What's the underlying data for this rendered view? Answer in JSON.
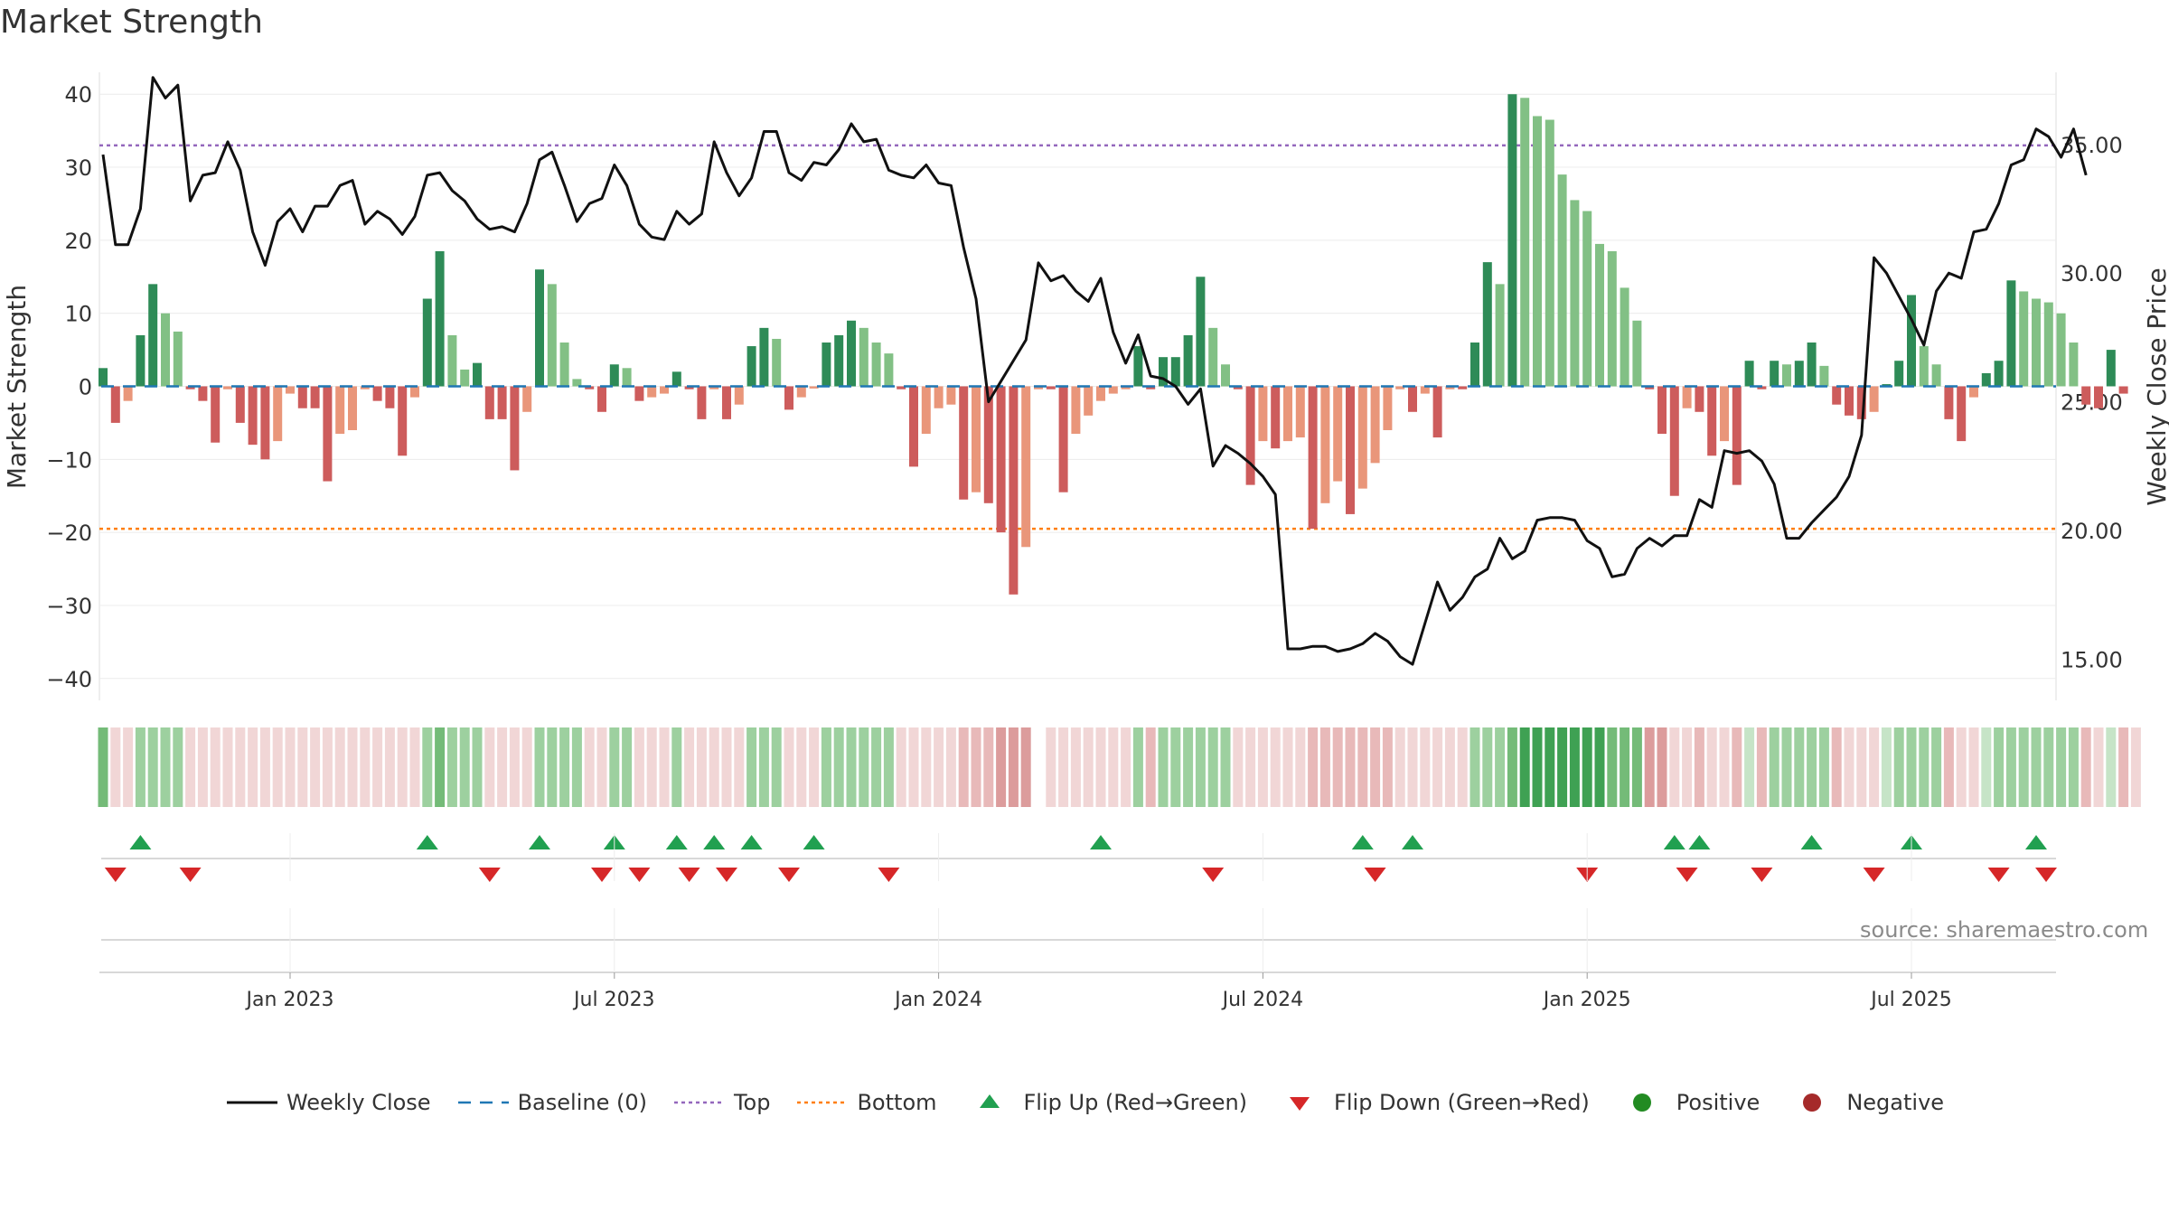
{
  "title": "Market Strength",
  "source": "source: sharemaestro.com",
  "chart_data": {
    "type": "bar",
    "left_axis_label": "Market Strength",
    "right_axis_label": "Weekly Close Price",
    "left_ylim": [
      -43,
      43
    ],
    "left_ticks": [
      40,
      30,
      20,
      10,
      0,
      -10,
      -20,
      -30,
      -40
    ],
    "left_tick_labels": [
      "40",
      "30",
      "20",
      "10",
      "0",
      "−10",
      "−20",
      "−30",
      "−40"
    ],
    "right_ylim": [
      13.4,
      37.8
    ],
    "right_ticks": [
      35,
      30,
      25,
      20,
      15
    ],
    "right_tick_labels": [
      "35.00",
      "30.00",
      "25.00",
      "20.00",
      "15.00"
    ],
    "top_line": 33,
    "bottom_line": -19.5,
    "x_tick_labels": [
      "Jan 2023",
      "Jul 2023",
      "Jan 2024",
      "Jul 2024",
      "Jan 2025",
      "Jul 2025"
    ],
    "x_tick_weeks": [
      15,
      41,
      67,
      93,
      119,
      145
    ],
    "strength": [
      2.5,
      -5,
      -2,
      7,
      14,
      10,
      7.5,
      -0.4,
      -2,
      -7.7,
      -0.4,
      -5,
      -8,
      -10,
      -7.5,
      -1,
      -3,
      -3,
      -13,
      -6.5,
      -6,
      -0.4,
      -2,
      -3,
      -9.5,
      -1.5,
      12,
      18.5,
      7,
      2.3,
      3.2,
      -4.5,
      -4.5,
      -11.5,
      -3.5,
      16,
      14,
      6,
      1,
      -0.4,
      -3.5,
      3,
      2.5,
      -2,
      -1.5,
      -1,
      2,
      -0.4,
      -4.5,
      -0.4,
      -4.5,
      -2.5,
      5.5,
      8,
      6.5,
      -3.2,
      -1.5,
      -0.3,
      6,
      7,
      9,
      8,
      6,
      4.5,
      -0.4,
      -11,
      -6.5,
      -3,
      -2.5,
      -15.5,
      -14.5,
      -16,
      -20,
      -28.5,
      -22,
      -0.4,
      -0.4,
      -14.5,
      -6.5,
      -4,
      -2,
      -1,
      -0.4,
      5.5,
      -0.4,
      4,
      4,
      7,
      15,
      8,
      3,
      -0.4,
      -13.5,
      -7.5,
      -8.5,
      -7.5,
      -7,
      -19.5,
      -16,
      -13,
      -17.5,
      -14,
      -10.5,
      -6,
      -0.4,
      -3.5,
      -1,
      -7,
      -0.4,
      -0.4,
      6,
      17,
      14,
      40,
      39.5,
      37,
      36.5,
      29,
      25.5,
      24,
      19.5,
      18.5,
      13.5,
      9,
      -0.4,
      -6.5,
      -15,
      -3,
      -3.5,
      -9.5,
      -7.5,
      -13.5,
      3.5,
      -0.4,
      3.5,
      3,
      3.5,
      6,
      2.8,
      -2.5,
      -4,
      -4.5,
      -3.5,
      0.3,
      3.5,
      12.5,
      5.5,
      3,
      -4.5,
      -7.5,
      -1.5,
      1.8,
      3.5,
      14.5,
      13,
      12,
      11.5,
      10,
      6,
      -2.5,
      -3,
      5,
      -1
    ],
    "weekly_close": [
      34.6,
      31.1,
      31.1,
      32.5,
      37.6,
      36.8,
      37.3,
      32.8,
      33.8,
      33.9,
      35.1,
      34.0,
      31.6,
      30.3,
      32.0,
      32.5,
      31.6,
      32.6,
      32.6,
      33.4,
      33.6,
      31.9,
      32.4,
      32.1,
      31.5,
      32.2,
      33.8,
      33.9,
      33.2,
      32.8,
      32.1,
      31.7,
      31.8,
      31.6,
      32.7,
      34.4,
      34.7,
      33.4,
      32.0,
      32.7,
      32.9,
      34.2,
      33.4,
      31.9,
      31.4,
      31.3,
      32.4,
      31.9,
      32.3,
      35.1,
      33.9,
      33.0,
      33.7,
      35.5,
      35.5,
      33.9,
      33.6,
      34.3,
      34.2,
      34.8,
      35.8,
      35.1,
      35.2,
      34.0,
      33.8,
      33.7,
      34.2,
      33.5,
      33.4,
      31.0,
      29.0,
      25.0,
      25.8,
      26.6,
      27.4,
      30.4,
      29.7,
      29.9,
      29.3,
      28.9,
      29.8,
      27.7,
      26.5,
      27.6,
      26.0,
      25.9,
      25.6,
      24.9,
      25.5,
      22.5,
      23.3,
      23.0,
      22.6,
      22.1,
      21.4,
      15.4,
      15.4,
      15.5,
      15.5,
      15.3,
      15.4,
      15.6,
      16.0,
      15.7,
      15.1,
      14.8,
      16.4,
      18.0,
      16.9,
      17.4,
      18.2,
      18.5,
      19.7,
      18.9,
      19.2,
      20.4,
      20.5,
      20.5,
      20.4,
      19.6,
      19.3,
      18.2,
      18.3,
      19.3,
      19.7,
      19.4,
      19.8,
      19.8,
      21.2,
      20.9,
      23.1,
      23.0,
      23.1,
      22.7,
      21.8,
      19.7,
      19.7,
      20.3,
      20.8,
      21.3,
      22.1,
      23.7,
      30.6,
      30.0,
      29.1,
      28.2,
      27.2,
      29.3,
      30.0,
      29.8,
      31.6,
      31.7,
      32.7,
      34.2,
      34.4,
      35.6,
      35.3,
      34.5,
      35.6,
      33.8
    ],
    "zone_shades": [
      2,
      0,
      0,
      1,
      1,
      1,
      1,
      0,
      0,
      0,
      0,
      0,
      0,
      0,
      0,
      0,
      0,
      0,
      0,
      0,
      0,
      0,
      0,
      0,
      0,
      0,
      1,
      2,
      1,
      1,
      1,
      0,
      0,
      0,
      0,
      1,
      1,
      1,
      1,
      0,
      0,
      1,
      1,
      0,
      0,
      0,
      1,
      0,
      0,
      0,
      0,
      0,
      1,
      1,
      1,
      0,
      0,
      0,
      1,
      1,
      1,
      1,
      1,
      1,
      0,
      0,
      0,
      0,
      0,
      1,
      1,
      1,
      2,
      2,
      2,
      null,
      0,
      0,
      0,
      0,
      0,
      0,
      0,
      1,
      1,
      1,
      1,
      1,
      1,
      1,
      1,
      0,
      0,
      0,
      0,
      0,
      0,
      1,
      1,
      1,
      1,
      1,
      1,
      1,
      0,
      0,
      0,
      0,
      0,
      0,
      1,
      1,
      1,
      2,
      3,
      3,
      3,
      3,
      3,
      3,
      3,
      2,
      2,
      2,
      2,
      2,
      0,
      0,
      1,
      0,
      0,
      1,
      0,
      1,
      1,
      1,
      1,
      1,
      1,
      1,
      0,
      0,
      0,
      0,
      1,
      1,
      1,
      1,
      1,
      0,
      0,
      0,
      1,
      1,
      1,
      1,
      1,
      1,
      1,
      1,
      0,
      0,
      1,
      0
    ],
    "flip_up_weeks": [
      3,
      26,
      35,
      41,
      46,
      49,
      52,
      57,
      80,
      101,
      105,
      126,
      128,
      137,
      145,
      155
    ],
    "flip_down_weeks": [
      1,
      7,
      31,
      40,
      43,
      47,
      50,
      55,
      63,
      89,
      102,
      119,
      127,
      133,
      142,
      152,
      155.8
    ],
    "colors": {
      "strong_green": "#2e8b57",
      "light_green": "#82c085",
      "strong_red": "#cd5c5c",
      "light_red": "#e9967a",
      "baseline": "#1f77b4",
      "top_line": "#9467bd",
      "bottom_line": "#ff7f0e",
      "close_line": "#111111",
      "flip_up": "#21a050",
      "flip_down": "#d62728",
      "positive": "#228b22",
      "negative": "#a52a2a"
    }
  },
  "legend": {
    "weekly_close": "Weekly Close",
    "baseline": "Baseline (0)",
    "top": "Top",
    "bottom": "Bottom",
    "flip_up": "Flip Up (Red→Green)",
    "flip_down": "Flip Down (Green→Red)",
    "positive": "Positive",
    "negative": "Negative"
  }
}
